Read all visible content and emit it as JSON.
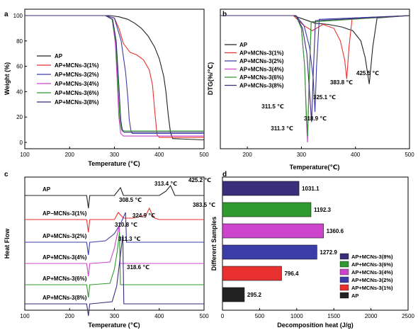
{
  "colors": {
    "AP": "#222222",
    "s1": "#e8312f",
    "s2": "#3c3ca8",
    "s4": "#cc44cc",
    "s6": "#2f9a2f",
    "s8": "#3a2d7a"
  },
  "chart_data": [
    {
      "panel": "a",
      "type": "line",
      "xlabel": "Temperature (℃)",
      "ylabel": "Weight (%)",
      "xlim": [
        100,
        500
      ],
      "ylim": [
        -5,
        105
      ],
      "xticks": [
        100,
        200,
        300,
        400,
        500
      ],
      "yticks": [
        0,
        20,
        40,
        60,
        80,
        100
      ],
      "legend": "center-left",
      "series": [
        {
          "name": "AP",
          "color_key": "AP",
          "x": [
            100,
            240,
            290,
            310,
            330,
            345,
            360,
            375,
            390,
            400,
            410,
            415,
            420,
            425,
            430,
            500
          ],
          "y": [
            100,
            100,
            100,
            99,
            97,
            94,
            90,
            84,
            75,
            66,
            52,
            40,
            22,
            8,
            3,
            2
          ]
        },
        {
          "name": "AP+MCNs-3(1%)",
          "color_key": "s1",
          "x": [
            100,
            280,
            300,
            310,
            320,
            335,
            350,
            365,
            378,
            385,
            390,
            395,
            400,
            500
          ],
          "y": [
            100,
            100,
            98,
            90,
            78,
            71,
            69,
            65,
            57,
            45,
            25,
            6,
            4,
            4
          ]
        },
        {
          "name": "AP+MCNs-3(2%)",
          "color_key": "s2",
          "x": [
            100,
            280,
            300,
            315,
            325,
            330,
            333,
            337,
            340,
            500
          ],
          "y": [
            100,
            100,
            98,
            80,
            55,
            35,
            18,
            9,
            7,
            7
          ]
        },
        {
          "name": "AP+MCNs-3(4%)",
          "color_key": "s4",
          "x": [
            100,
            280,
            295,
            302,
            306,
            310,
            314,
            320,
            500
          ],
          "y": [
            100,
            100,
            97,
            78,
            50,
            20,
            7,
            5,
            5
          ]
        },
        {
          "name": "AP+MCNs-3(6%)",
          "color_key": "s6",
          "x": [
            100,
            280,
            295,
            303,
            308,
            312,
            316,
            322,
            500
          ],
          "y": [
            100,
            100,
            97,
            80,
            45,
            18,
            10,
            9,
            9
          ]
        },
        {
          "name": "AP+MCNs-3(8%)",
          "color_key": "s8",
          "x": [
            100,
            280,
            296,
            304,
            310,
            314,
            318,
            322,
            500
          ],
          "y": [
            100,
            100,
            97,
            80,
            45,
            18,
            9,
            8,
            8
          ]
        }
      ]
    },
    {
      "panel": "b",
      "type": "line",
      "xlabel": "Temperature(℃)",
      "ylabel": "DTG(%/℃)",
      "xlim": [
        150,
        500
      ],
      "ylim": [
        -10.5,
        0.5
      ],
      "xticks": [
        200,
        300,
        400,
        500
      ],
      "legend": "top-left",
      "series": [
        {
          "name": "AP",
          "color_key": "AP",
          "x": [
            150,
            285,
            305,
            325,
            350,
            375,
            395,
            410,
            418,
            425.5,
            432,
            440,
            500
          ],
          "y": [
            0,
            0,
            -0.3,
            -0.6,
            -0.7,
            -0.9,
            -1.2,
            -2.0,
            -3.3,
            -5.4,
            -2.5,
            -0.2,
            0
          ]
        },
        {
          "name": "AP+MCNs-3(1%)",
          "color_key": "s1",
          "x": [
            150,
            285,
            305,
            320,
            340,
            360,
            372,
            380,
            383.8,
            388,
            394,
            500
          ],
          "y": [
            0,
            0,
            -0.8,
            -1.2,
            -0.7,
            -1.0,
            -2.0,
            -3.5,
            -5.0,
            -2.5,
            -0.2,
            0
          ]
        },
        {
          "name": "AP+MCNs-3(2%)",
          "color_key": "s2",
          "x": [
            150,
            290,
            305,
            315,
            322,
            325.1,
            328,
            333,
            500
          ],
          "y": [
            0,
            0,
            -0.8,
            -2.5,
            -5.0,
            -7.6,
            -4.0,
            -0.3,
            0
          ]
        },
        {
          "name": "AP+MCNs-3(4%)",
          "color_key": "s4",
          "x": [
            150,
            290,
            300,
            306,
            309,
            311.3,
            314,
            318,
            500
          ],
          "y": [
            0,
            0,
            -1.0,
            -4.0,
            -8.0,
            -10.0,
            -6.0,
            -0.5,
            0
          ]
        },
        {
          "name": "AP+MCNs-3(6%)",
          "color_key": "s6",
          "x": [
            150,
            290,
            300,
            306,
            309,
            311.5,
            314,
            318,
            500
          ],
          "y": [
            0,
            0,
            -1.0,
            -4.0,
            -7.5,
            -9.5,
            -5.5,
            -0.5,
            0
          ]
        },
        {
          "name": "AP+MCNs-3(8%)",
          "color_key": "s8",
          "x": [
            150,
            290,
            302,
            310,
            315,
            318.9,
            322,
            326,
            500
          ],
          "y": [
            0,
            0,
            -1.0,
            -3.0,
            -6.0,
            -8.4,
            -4.5,
            -0.4,
            0
          ]
        }
      ],
      "annotations": [
        {
          "text": "425.5 ℃",
          "x": 425.5
        },
        {
          "text": "383.8 ℃",
          "x": 383.8
        },
        {
          "text": "325.1 ℃",
          "x": 325.1
        },
        {
          "text": "311.5 ℃",
          "x": 311.5
        },
        {
          "text": "318.9 ℃",
          "x": 318.9
        },
        {
          "text": "311.3 ℃",
          "x": 311.3
        }
      ]
    },
    {
      "panel": "c",
      "type": "line",
      "xlabel": "Temperature (℃)",
      "ylabel": "Heat Flow",
      "xlim": [
        100,
        500
      ],
      "xticks": [
        100,
        200,
        300,
        400,
        500
      ],
      "ylim": [
        0,
        9.5
      ],
      "series": [
        {
          "name": "AP",
          "color_key": "AP",
          "baseline": 8.2,
          "x": [
            100,
            238,
            242,
            245,
            248,
            300,
            313.4,
            320,
            330,
            400,
            415,
            425.2,
            435,
            500
          ],
          "y": [
            8.2,
            8.2,
            7.3,
            8.2,
            8.2,
            8.2,
            8.75,
            8.2,
            8.2,
            8.2,
            8.5,
            8.9,
            8.2,
            8.2
          ]
        },
        {
          "name": "AP−MCNs-3(1%)",
          "color_key": "s1",
          "baseline": 6.5,
          "x": [
            100,
            238,
            242,
            245,
            248,
            300,
            308.5,
            320,
            340,
            370,
            378,
            383.5,
            390,
            400,
            500
          ],
          "y": [
            6.5,
            6.5,
            5.6,
            6.5,
            6.5,
            6.5,
            7.0,
            6.6,
            6.6,
            6.8,
            7.3,
            6.9,
            6.6,
            6.5,
            6.5
          ]
        },
        {
          "name": "AP+MCNs-3(2%)",
          "color_key": "s2",
          "baseline": 4.9,
          "x": [
            100,
            238,
            242,
            245,
            248,
            280,
            300,
            315,
            324.9,
            327,
            330,
            500
          ],
          "y": [
            4.9,
            4.9,
            4.0,
            4.9,
            4.9,
            5.0,
            5.5,
            6.3,
            7.0,
            4.9,
            4.9,
            4.9
          ]
        },
        {
          "name": "AP+MCNs-3(4%)",
          "color_key": "s4",
          "baseline": 3.4,
          "x": [
            100,
            238,
            242,
            245,
            248,
            290,
            300,
            306,
            310.8,
            313,
            316,
            500
          ],
          "y": [
            3.4,
            3.4,
            2.5,
            3.4,
            3.4,
            3.5,
            4.5,
            5.4,
            6.1,
            3.4,
            3.4,
            3.4
          ]
        },
        {
          "name": "AP+MCNs-3(6%)",
          "color_key": "s6",
          "baseline": 1.9,
          "x": [
            100,
            238,
            242,
            245,
            248,
            290,
            300,
            306,
            311.3,
            313.5,
            316,
            500
          ],
          "y": [
            1.9,
            1.9,
            1.0,
            1.9,
            1.9,
            2.0,
            3.0,
            4.2,
            5.6,
            1.9,
            1.9,
            1.9
          ]
        },
        {
          "name": "AP+MCNs-3(8%)",
          "color_key": "s8",
          "baseline": 0.55,
          "x": [
            100,
            238,
            242,
            245,
            248,
            295,
            305,
            312,
            318.6,
            321,
            324,
            500
          ],
          "y": [
            0.55,
            0.55,
            -0.3,
            0.55,
            0.55,
            0.7,
            1.8,
            3.6,
            5.4,
            0.55,
            0.55,
            0.55
          ]
        }
      ],
      "annotations": [
        {
          "text": "313.4 ℃",
          "x": 313.4
        },
        {
          "text": "425.2 ℃",
          "x": 425.2
        },
        {
          "text": "383.5 ℃",
          "x": 383.5
        },
        {
          "text": "308.5 ℃",
          "x": 308.5
        },
        {
          "text": "324.9 ℃",
          "x": 324.9
        },
        {
          "text": "310.8 ℃",
          "x": 310.8
        },
        {
          "text": "311.3 ℃",
          "x": 311.3
        },
        {
          "text": "318.6 ℃",
          "x": 318.6
        }
      ]
    },
    {
      "panel": "d",
      "type": "bar",
      "orientation": "horizontal",
      "xlabel": "Decomposition heat (J/g)",
      "ylabel": "Different Samples",
      "xlim": [
        0,
        2500
      ],
      "xticks": [
        0,
        500,
        1000,
        1500,
        2000,
        2500
      ],
      "legend": "bottom-right",
      "categories": [
        "AP+MCNs-3(8%)",
        "AP+MCNs-3(6%)",
        "AP+MCNs-3(4%)",
        "AP+MCNs-3(2%)",
        "AP+MCNs-3(1%)",
        "AP"
      ],
      "values": [
        1031.1,
        1192.3,
        1360.6,
        1272.9,
        796.4,
        295.2
      ],
      "color_keys": [
        "s8",
        "s6",
        "s4",
        "s2",
        "s1",
        "AP"
      ],
      "value_labels": [
        "1031.1",
        "1192.3",
        "1360.6",
        "1272.9",
        "796.4",
        "295.2"
      ]
    }
  ],
  "panel_labels": {
    "a": "a",
    "b": "b",
    "c": "c",
    "d": "d"
  },
  "legend_labels": [
    "AP",
    "AP+MCNs-3(1%)",
    "AP+MCNs-3(2%)",
    "AP+MCNs-3(4%)",
    "AP+MCNs-3(6%)",
    "AP+MCNs-3(8%)"
  ],
  "legend_keys": [
    "AP",
    "s1",
    "s2",
    "s4",
    "s6",
    "s8"
  ],
  "legend_d_labels": [
    "AP+MCNs-3(8%)",
    "AP+MCNs-3(6%)",
    "AP+MCNs-3(4%)",
    "AP+MCNs-3(2%)",
    "AP+MCNs-3(1%)",
    "AP"
  ],
  "c_row_labels": [
    "AP",
    "AP−MCNs-3(1%)",
    "AP+MCNs-3(2%)",
    "AP+MCNs-3(4%)",
    "AP+MCNs-3(6%)",
    "AP+MCNs-3(8%)"
  ]
}
